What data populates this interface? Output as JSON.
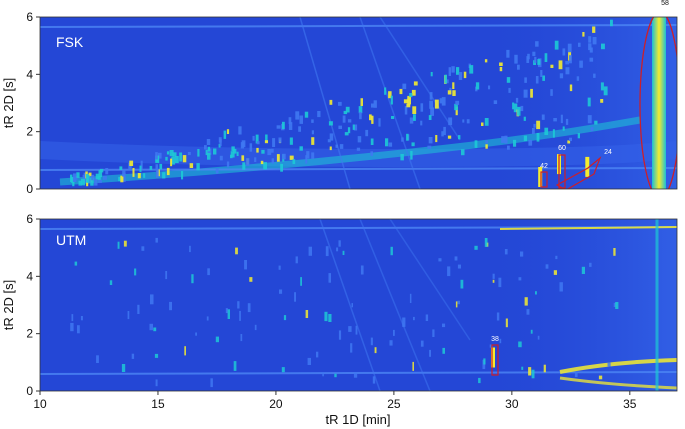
{
  "chart_data": {
    "type": "heatmap",
    "xlabel": "tR 1D [min]",
    "xlim": [
      10,
      37
    ],
    "xticks": [
      "10",
      "15",
      "20",
      "25",
      "30",
      "35"
    ],
    "ylim": [
      0,
      6
    ],
    "yticks": [
      "0",
      "2",
      "4",
      "6"
    ],
    "colors": {
      "background": "#2447d6",
      "trace": "#3f78f2",
      "mid": "#1dc9d6",
      "peak": "#f5ec2e",
      "highlight": "#cc1f2a"
    },
    "panels": [
      {
        "title": "FSK",
        "ylabel": "tR 2D [s]",
        "annotations": [
          {
            "label": "58",
            "x": 36.3,
            "y": 3.1
          },
          {
            "label": "42",
            "x": 31.2,
            "y": 0.35
          },
          {
            "label": "60",
            "x": 32.0,
            "y": 0.8
          },
          {
            "label": "24",
            "x": 33.2,
            "y": 0.7
          }
        ]
      },
      {
        "title": "UTM",
        "ylabel": "tR 2D [s]",
        "annotations": [
          {
            "label": "38",
            "x": 29.2,
            "y": 1.1
          }
        ]
      }
    ]
  }
}
